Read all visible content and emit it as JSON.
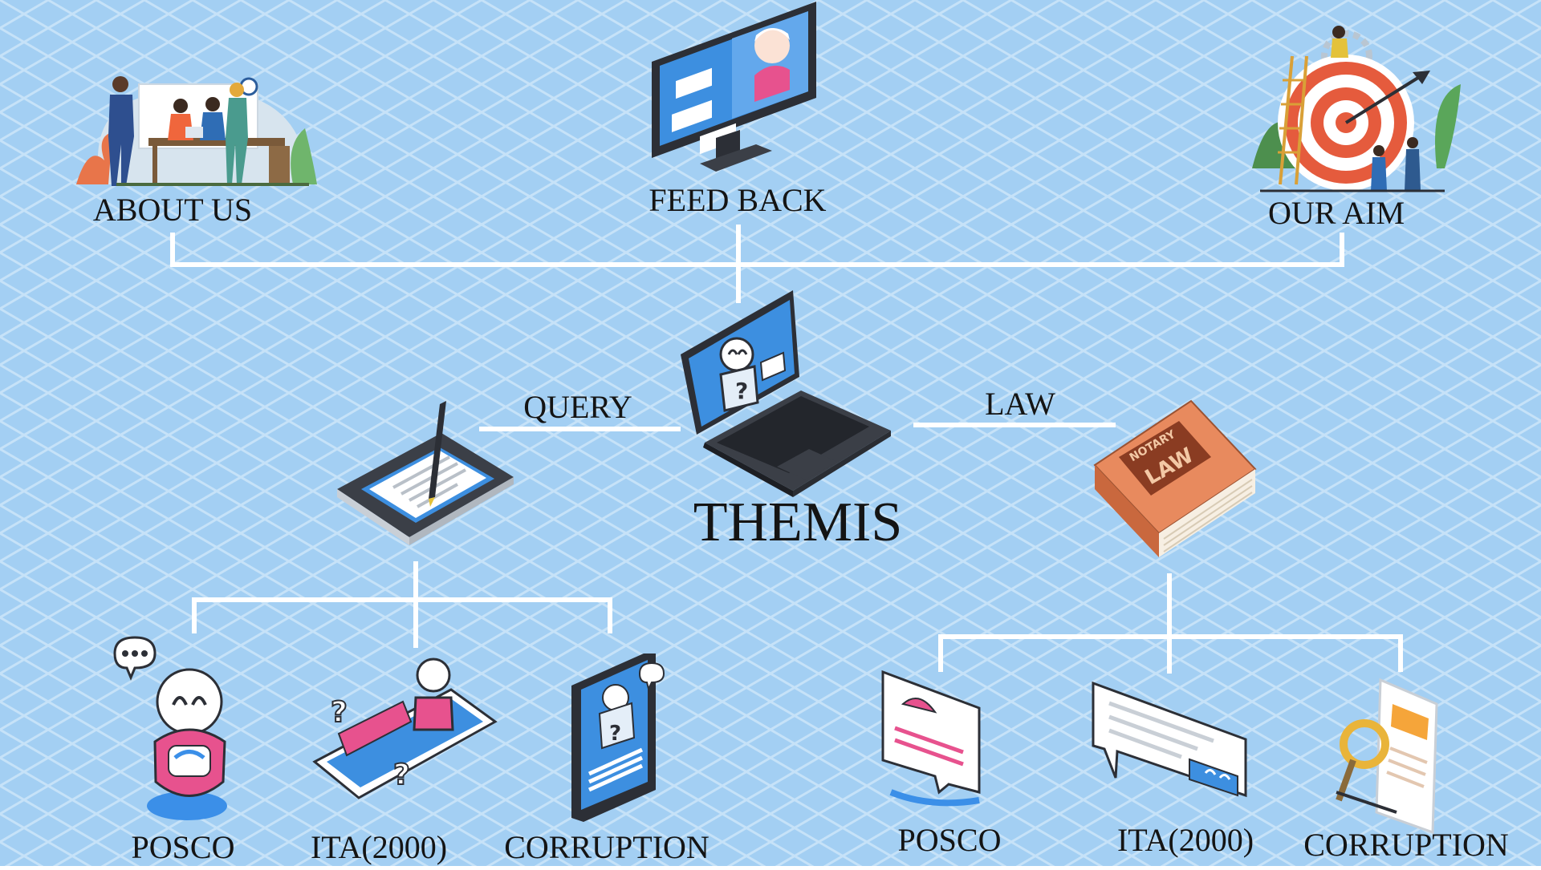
{
  "diagram": {
    "center": {
      "label": "THEMIS",
      "icon": "laptop-chatbot-icon"
    },
    "top_nodes": [
      {
        "label": "ABOUT US",
        "icon": "team-meeting-icon"
      },
      {
        "label": "FEED BACK",
        "icon": "monitor-chat-icon"
      },
      {
        "label": "OUR AIM",
        "icon": "target-dart-icon"
      }
    ],
    "left_branch": {
      "edge_label": "QUERY",
      "icon": "tablet-pen-icon",
      "children": [
        {
          "label": "POSCO",
          "icon": "chatbot-robot-icon"
        },
        {
          "label": "ITA(2000)",
          "icon": "phone-robot-question-icon"
        },
        {
          "label": "CORRUPTION",
          "icon": "smartphone-robot-icon"
        }
      ]
    },
    "right_branch": {
      "edge_label": "LAW",
      "icon": "law-book-icon",
      "book_text": [
        "NOTARY",
        "LAW"
      ],
      "children": [
        {
          "label": "POSCO",
          "icon": "message-card-icon"
        },
        {
          "label": "ITA(2000)",
          "icon": "speech-bubble-icon"
        },
        {
          "label": "CORRUPTION",
          "icon": "document-magnifier-icon"
        }
      ]
    }
  },
  "colors": {
    "background": "#a3cff3",
    "grid": "#c6e2f8",
    "connector": "#ffffff",
    "text": "#141414",
    "accent_pink": "#e7528e",
    "accent_blue": "#3b8fe8",
    "book": "#e88a5e"
  }
}
